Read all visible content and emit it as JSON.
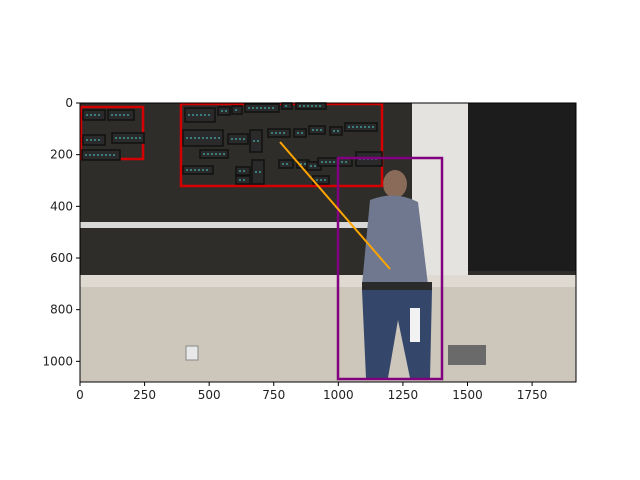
{
  "figure": {
    "x_axis": {
      "ticks": [
        "0",
        "250",
        "500",
        "750",
        "1000",
        "1250",
        "1500",
        "1750"
      ],
      "range": [
        0,
        1920
      ]
    },
    "y_axis": {
      "ticks": [
        "0",
        "200",
        "400",
        "600",
        "800",
        "1000"
      ],
      "range": [
        1080,
        0
      ]
    }
  },
  "scene": {
    "description_kind": "lecture photo overlay",
    "board_text_regions": [
      {
        "x": 0,
        "y": 20,
        "w": 250,
        "h": 225
      },
      {
        "x": 390,
        "y": 0,
        "w": 800,
        "h": 320
      }
    ],
    "person_box": {
      "x": 1000,
      "y": 215,
      "w": 400,
      "h": 860
    },
    "pointer_line": {
      "from": [
        775,
        150
      ],
      "to": [
        1200,
        640
      ]
    },
    "colors": {
      "text_region": "#d40000",
      "person": "#800080",
      "pointer": "#ffa500",
      "word_box": "#111111",
      "word_fill": "#4ad0d0"
    }
  }
}
